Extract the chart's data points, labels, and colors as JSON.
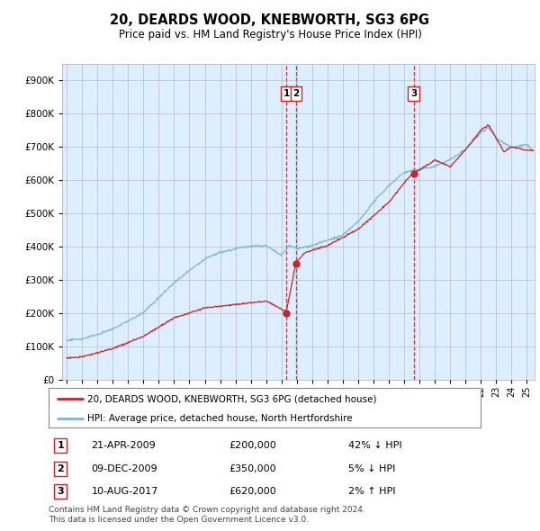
{
  "title": "20, DEARDS WOOD, KNEBWORTH, SG3 6PG",
  "subtitle": "Price paid vs. HM Land Registry's House Price Index (HPI)",
  "ytick_values": [
    0,
    100000,
    200000,
    300000,
    400000,
    500000,
    600000,
    700000,
    800000,
    900000
  ],
  "ylim": [
    0,
    950000
  ],
  "xlim_start": 1994.7,
  "xlim_end": 2025.5,
  "hpi_color": "#7ab4d8",
  "price_color": "#cc2222",
  "vline_color": "#cc2222",
  "bg_chart_color": "#ddeeff",
  "transactions": [
    {
      "id": 1,
      "date": 2009.31,
      "price": 200000,
      "label": "1"
    },
    {
      "id": 2,
      "date": 2009.95,
      "price": 350000,
      "label": "2"
    },
    {
      "id": 3,
      "date": 2017.62,
      "price": 620000,
      "label": "3"
    }
  ],
  "transaction_table": [
    {
      "num": "1",
      "date": "21-APR-2009",
      "price": "£200,000",
      "hpi_rel": "42% ↓ HPI"
    },
    {
      "num": "2",
      "date": "09-DEC-2009",
      "price": "£350,000",
      "hpi_rel": "5% ↓ HPI"
    },
    {
      "num": "3",
      "date": "10-AUG-2017",
      "price": "£620,000",
      "hpi_rel": "2% ↑ HPI"
    }
  ],
  "legend_entries": [
    "20, DEARDS WOOD, KNEBWORTH, SG3 6PG (detached house)",
    "HPI: Average price, detached house, North Hertfordshire"
  ],
  "footer": "Contains HM Land Registry data © Crown copyright and database right 2024.\nThis data is licensed under the Open Government Licence v3.0.",
  "background_color": "#ffffff",
  "grid_color": "#bbbbcc"
}
